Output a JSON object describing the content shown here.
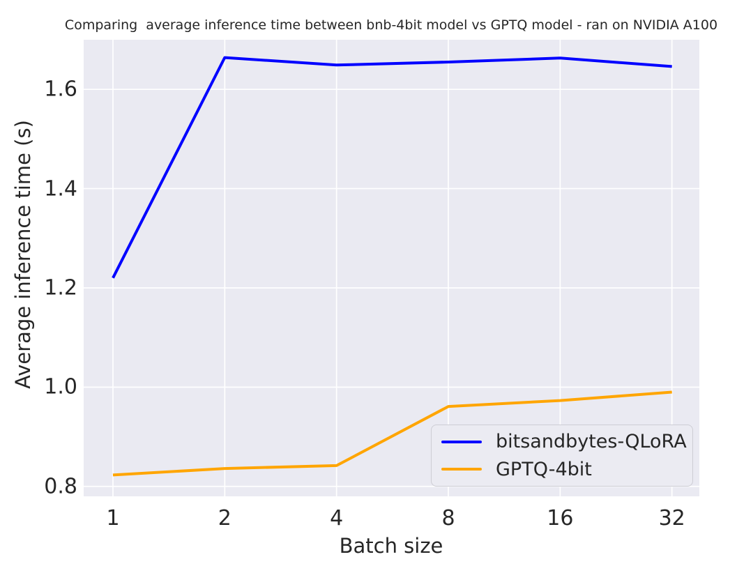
{
  "figure": {
    "title": "Comparing  average inference time between bnb-4bit model vs GPTQ model - ran on NVIDIA A100"
  },
  "chart_data": {
    "type": "line",
    "title": "Comparing  average inference time between bnb-4bit model vs GPTQ model - ran on NVIDIA A100",
    "xlabel": "Batch size",
    "ylabel": "Average inference time (s)",
    "x_scale": "log2",
    "x": [
      1,
      2,
      4,
      8,
      16,
      32
    ],
    "x_tick_labels": [
      "1",
      "2",
      "4",
      "8",
      "16",
      "32"
    ],
    "y_ticks": [
      0.8,
      1.0,
      1.2,
      1.4,
      1.6
    ],
    "y_tick_labels": [
      "0.8",
      "1.0",
      "1.2",
      "1.4",
      "1.6"
    ],
    "ylim": [
      0.78,
      1.7
    ],
    "grid": true,
    "legend_position": "lower right",
    "series": [
      {
        "name": "bitsandbytes-QLoRA",
        "color": "#0000ff",
        "values": [
          1.22,
          1.664,
          1.649,
          1.655,
          1.663,
          1.646
        ]
      },
      {
        "name": "GPTQ-4bit",
        "color": "#ffa500",
        "values": [
          0.823,
          0.836,
          0.842,
          0.961,
          0.973,
          0.99
        ]
      }
    ],
    "colors": {
      "figure_background": "#ffffff",
      "plot_background": "#eaeaf2",
      "grid": "#ffffff",
      "text": "#262626"
    }
  }
}
